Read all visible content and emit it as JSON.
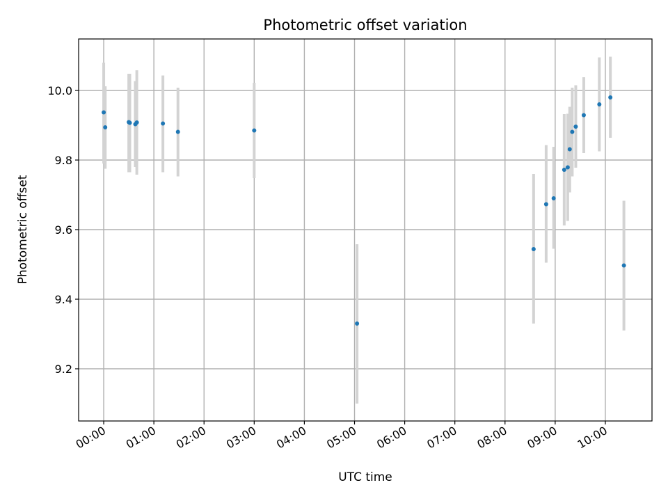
{
  "chart_data": {
    "type": "scatter",
    "title": "Photometric offset variation",
    "xlabel": "UTC time",
    "ylabel": "Photometric offset",
    "xlim": [
      -0.5,
      10.93
    ],
    "ylim": [
      9.05,
      10.148
    ],
    "x_ticks": [
      {
        "value": 0,
        "label": "00:00"
      },
      {
        "value": 1,
        "label": "01:00"
      },
      {
        "value": 2,
        "label": "02:00"
      },
      {
        "value": 3,
        "label": "03:00"
      },
      {
        "value": 4,
        "label": "04:00"
      },
      {
        "value": 5,
        "label": "05:00"
      },
      {
        "value": 6,
        "label": "06:00"
      },
      {
        "value": 7,
        "label": "07:00"
      },
      {
        "value": 8,
        "label": "08:00"
      },
      {
        "value": 9,
        "label": "09:00"
      },
      {
        "value": 10,
        "label": "10:00"
      }
    ],
    "y_ticks": [
      {
        "value": 9.2,
        "label": "9.2"
      },
      {
        "value": 9.4,
        "label": "9.4"
      },
      {
        "value": 9.6,
        "label": "9.6"
      },
      {
        "value": 9.8,
        "label": "9.8"
      },
      {
        "value": 10.0,
        "label": "10.0"
      }
    ],
    "grid": true,
    "marker_color": "#1f77b4",
    "errorbar_color": "#d3d3d3",
    "points": [
      {
        "x": 0.0,
        "y": 9.937,
        "err_low": 9.79,
        "err_high": 10.08
      },
      {
        "x": 0.03,
        "y": 9.894,
        "err_low": 9.775,
        "err_high": 10.012
      },
      {
        "x": 0.5,
        "y": 9.909,
        "err_low": 9.765,
        "err_high": 10.048
      },
      {
        "x": 0.52,
        "y": 9.907,
        "err_low": 9.765,
        "err_high": 10.048
      },
      {
        "x": 0.63,
        "y": 9.903,
        "err_low": 9.78,
        "err_high": 10.027
      },
      {
        "x": 0.66,
        "y": 9.908,
        "err_low": 9.758,
        "err_high": 10.058
      },
      {
        "x": 1.18,
        "y": 9.905,
        "err_low": 9.765,
        "err_high": 10.043
      },
      {
        "x": 1.48,
        "y": 9.881,
        "err_low": 9.753,
        "err_high": 10.008
      },
      {
        "x": 3.0,
        "y": 9.885,
        "err_low": 9.748,
        "err_high": 10.022
      },
      {
        "x": 5.05,
        "y": 9.33,
        "err_low": 9.1,
        "err_high": 9.558
      },
      {
        "x": 8.57,
        "y": 9.544,
        "err_low": 9.33,
        "err_high": 9.76
      },
      {
        "x": 8.82,
        "y": 9.673,
        "err_low": 9.505,
        "err_high": 9.843
      },
      {
        "x": 8.97,
        "y": 9.69,
        "err_low": 9.545,
        "err_high": 9.838
      },
      {
        "x": 9.18,
        "y": 9.772,
        "err_low": 9.612,
        "err_high": 9.932
      },
      {
        "x": 9.25,
        "y": 9.779,
        "err_low": 9.625,
        "err_high": 9.933
      },
      {
        "x": 9.29,
        "y": 9.831,
        "err_low": 9.707,
        "err_high": 9.953
      },
      {
        "x": 9.34,
        "y": 9.881,
        "err_low": 9.753,
        "err_high": 10.008
      },
      {
        "x": 9.41,
        "y": 9.896,
        "err_low": 9.778,
        "err_high": 10.015
      },
      {
        "x": 9.57,
        "y": 9.929,
        "err_low": 9.82,
        "err_high": 10.038
      },
      {
        "x": 9.88,
        "y": 9.96,
        "err_low": 9.825,
        "err_high": 10.095
      },
      {
        "x": 10.1,
        "y": 9.98,
        "err_low": 9.864,
        "err_high": 10.097
      },
      {
        "x": 10.37,
        "y": 9.497,
        "err_low": 9.31,
        "err_high": 9.683
      }
    ]
  }
}
